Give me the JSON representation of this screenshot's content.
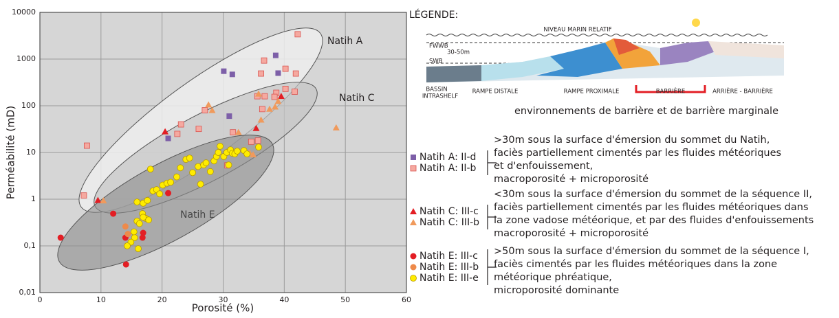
{
  "chart_data": {
    "type": "scatter",
    "x_label": "Porosité (%)",
    "y_label": "Perméabilité (mD)",
    "xlim": [
      0,
      60
    ],
    "xticks": [
      0,
      10,
      20,
      30,
      40,
      50,
      60
    ],
    "ylim": [
      0.01,
      10000
    ],
    "yticks": [
      {
        "value": 0.01,
        "label": "0,01"
      },
      {
        "value": 0.1,
        "label": "0,1"
      },
      1,
      10,
      100,
      1000,
      10000
    ],
    "log_y": true,
    "grid": true,
    "annotations": [
      "Natih A",
      "Natih C",
      "Natih E"
    ],
    "series": [
      {
        "name": "Natih A: II-d",
        "color": "#7d5fa8",
        "marker": "square",
        "x": [
          30.1,
          31.5,
          38.6,
          39,
          31,
          21
        ],
        "values": [
          550,
          470,
          1200,
          500,
          60,
          20
        ]
      },
      {
        "name": "Natih A: II-b",
        "color": "#f5a9a0",
        "marker": "square",
        "x": [
          42.2,
          36.2,
          36.7,
          40.2,
          41.9,
          40.2,
          38.7,
          38.4,
          41.7,
          36.8,
          35.6,
          36.4,
          27,
          26,
          23.1,
          22.5,
          31.6,
          7.7,
          7.2,
          30.7,
          34.6,
          35.7
        ],
        "values": [
          3400,
          490,
          930,
          620,
          490,
          230,
          190,
          155,
          200,
          160,
          160,
          85,
          80,
          32,
          40,
          25,
          27,
          14,
          1.2,
          5.3,
          17,
          18
        ]
      },
      {
        "name": "Natih C: III-c",
        "color": "#e31e24",
        "marker": "triangle",
        "x": [
          20.5,
          35.4,
          39.5,
          9.5
        ],
        "values": [
          28,
          33,
          160,
          0.95
        ]
      },
      {
        "name": "Natih C: III-b",
        "color": "#f09a5c",
        "marker": "triangle",
        "x": [
          27.6,
          28.2,
          35.8,
          39,
          37.6,
          38.5,
          36.2,
          32.5,
          48.5,
          10.4,
          34.9,
          34.3
        ],
        "values": [
          105,
          80,
          180,
          125,
          85,
          95,
          50,
          27,
          34,
          0.93,
          9,
          10
        ]
      },
      {
        "name": "Natih E: III-c",
        "color": "#e31e24",
        "marker": "circle",
        "x": [
          3.4,
          12,
          21,
          14,
          14.1,
          16.9,
          16.8
        ],
        "values": [
          0.15,
          0.49,
          1.35,
          0.15,
          0.04,
          0.19,
          0.15
        ]
      },
      {
        "name": "Natih E: III-b",
        "color": "#ee8a4a",
        "marker": "circle",
        "x": [
          14,
          14.4
        ],
        "values": [
          0.26,
          0.18
        ]
      },
      {
        "name": "Natih E: III-e",
        "color": "#ffec00",
        "marker": "circle",
        "x": [
          15.5,
          14.9,
          15.4,
          16.1,
          14.3,
          15.9,
          16.3,
          16.8,
          17.3,
          17.8,
          16.9,
          17.6,
          15.9,
          18.1,
          18.5,
          19.1,
          19.6,
          20.1,
          20.8,
          21.4,
          22.4,
          23,
          23.9,
          24.5,
          25,
          25.9,
          26.3,
          26.8,
          27.2,
          27.9,
          28.5,
          28.9,
          29.2,
          29.5,
          30.1,
          30.6,
          31.2,
          31.5,
          31.9,
          32.3,
          33.4,
          33.9,
          35.8,
          30.9,
          16.9
        ],
        "values": [
          0.15,
          0.12,
          0.2,
          0.087,
          0.1,
          0.34,
          0.3,
          0.49,
          0.39,
          0.36,
          0.82,
          0.94,
          0.87,
          4.4,
          1.5,
          1.6,
          1.3,
          2,
          2.2,
          2.3,
          3,
          4.7,
          7.1,
          7.6,
          3.7,
          5,
          2.1,
          5.4,
          6,
          3.9,
          6.6,
          8.2,
          10,
          13.6,
          8.2,
          10,
          11.4,
          9.6,
          9.3,
          10.7,
          11,
          9.3,
          13,
          5.4,
          0.41
        ]
      }
    ],
    "legend_groups": [
      {
        "series": [
          0,
          1
        ],
        "note": [
          ">30m sous la surface d'émersion du sommet du Natih,",
          "faciès partiellement cimentés par les fluides météoriques",
          "et d'enfouissement,",
          " macroporosité + microporosité"
        ]
      },
      {
        "series": [
          2,
          3
        ],
        "note": [
          "<30m sous la surface d'émersion du sommet de la séquence II,",
          "faciès partiellement cimentés par les fluides météoriques dans",
          "la zone vadose météorique, et par des fluides d'enfouissements",
          "macroporosité + microporosité"
        ]
      },
      {
        "series": [
          4,
          5,
          6
        ],
        "note": [
          ">50m sous la surface d'émersion du sommet de la séquence I,",
          "faciès cimentés par les fluides météoriques dans la zone",
          "météorique phréatique,",
          "microporosité dominante"
        ]
      }
    ]
  },
  "diagram": {
    "title": "LÉGENDE:",
    "sea_level": "NIVEAU MARIN RELATIF",
    "fwwb": "FWWB",
    "depth": "30-50m",
    "swb": "SWB",
    "zones": [
      "BASSIN",
      "INTRASHELF",
      "RAMPE DISTALE",
      "RAMPE PROXIMALE",
      "BARRIÈRE",
      "ARRIÈRE - BARRIÈRE"
    ],
    "caption": "environnements de barrière et de barrière marginale"
  }
}
